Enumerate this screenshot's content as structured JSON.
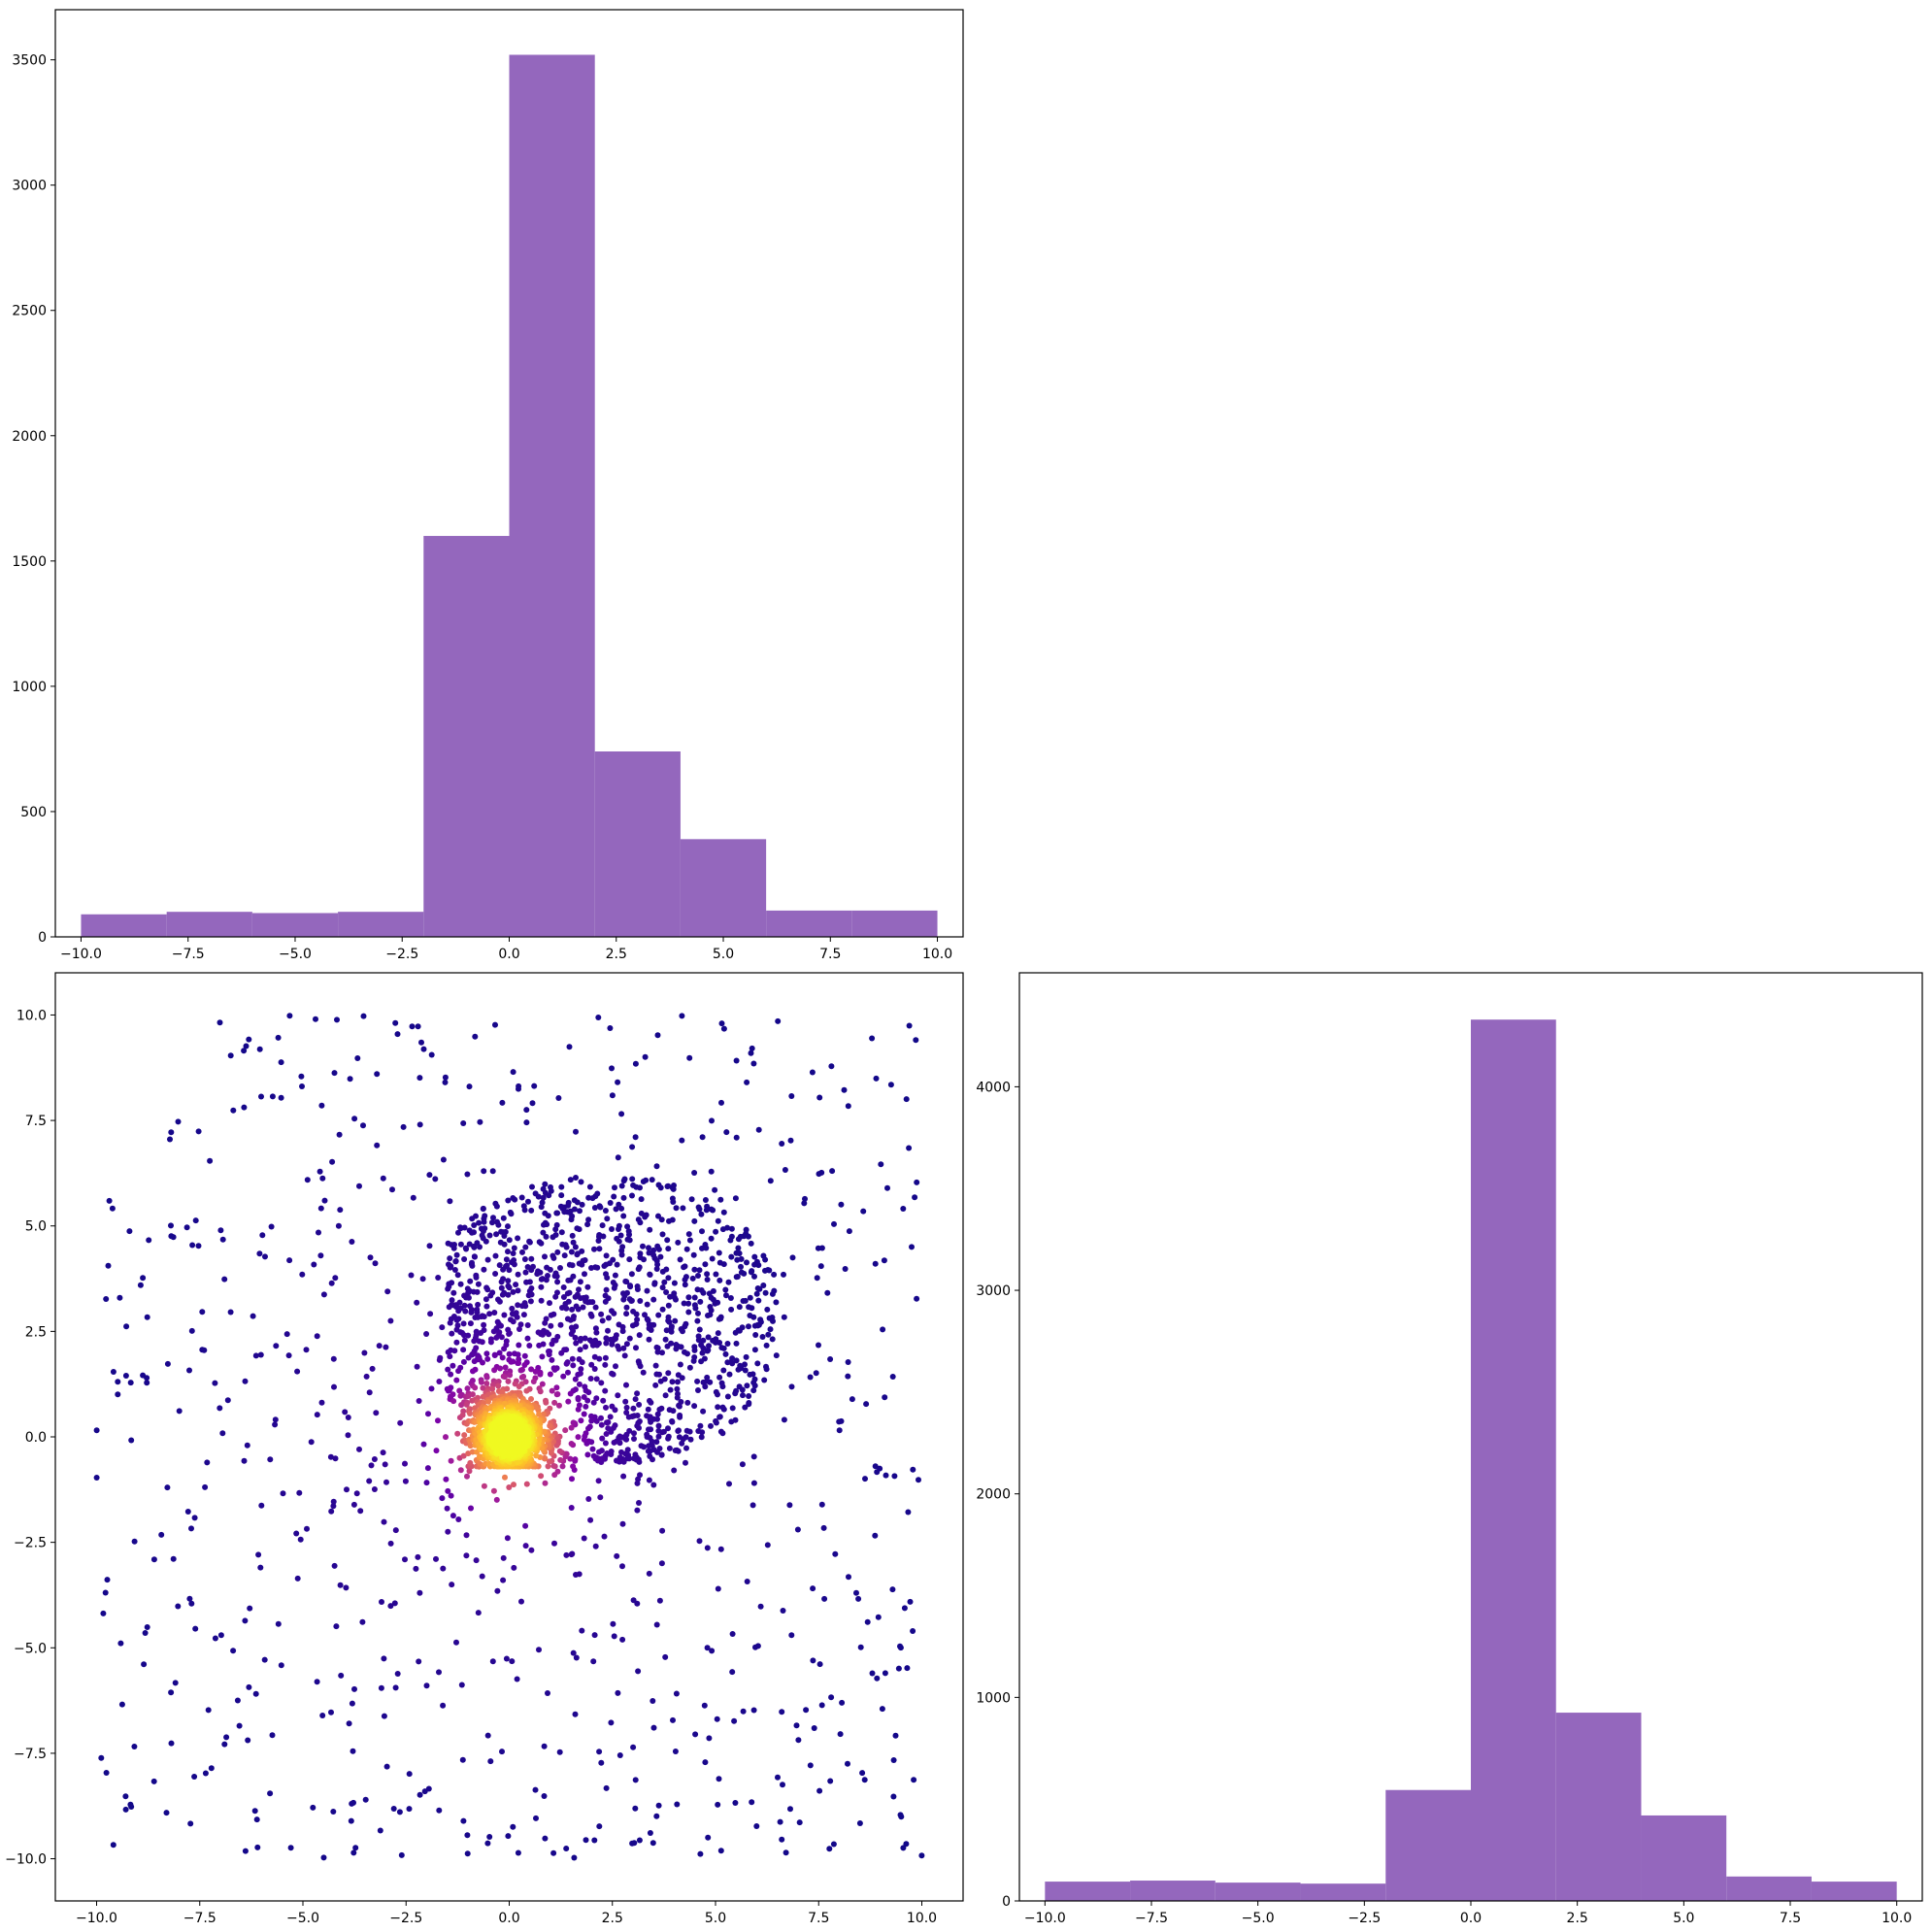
{
  "chart_data": [
    {
      "id": "hist-top-left",
      "type": "bar",
      "subtype": "histogram",
      "bin_edges": [
        -10,
        -8,
        -6,
        -4,
        -2,
        0,
        2,
        4,
        6,
        8,
        10
      ],
      "values": [
        90,
        100,
        95,
        100,
        1600,
        3520,
        740,
        390,
        105,
        105
      ],
      "xlim": [
        -10.6,
        10.6
      ],
      "ylim": [
        0,
        3700
      ],
      "xticks": [
        -10,
        -7.5,
        -5,
        -2.5,
        0,
        2.5,
        5,
        7.5,
        10
      ],
      "xtick_labels": [
        "−10.0",
        "−7.5",
        "−5.0",
        "−2.5",
        "0.0",
        "2.5",
        "5.0",
        "7.5",
        "10.0"
      ],
      "yticks": [
        0,
        500,
        1000,
        1500,
        2000,
        2500,
        3000,
        3500
      ],
      "ytick_labels": [
        "0",
        "500",
        "1000",
        "1500",
        "2000",
        "2500",
        "3000",
        "3500"
      ],
      "bar_color": "#9467bd",
      "grid": false
    },
    {
      "id": "scatter-bottom-left",
      "type": "scatter",
      "description_colormap": "plasma",
      "xlim": [
        -11,
        11
      ],
      "ylim": [
        -11,
        11
      ],
      "xticks": [
        -10,
        -7.5,
        -5,
        -2.5,
        0,
        2.5,
        5,
        7.5,
        10
      ],
      "xtick_labels": [
        "−10.0",
        "−7.5",
        "−5.0",
        "−2.5",
        "0.0",
        "2.5",
        "5.0",
        "7.5",
        "10.0"
      ],
      "yticks": [
        -10,
        -7.5,
        -5,
        -2.5,
        0,
        2.5,
        5,
        7.5,
        10
      ],
      "ytick_labels": [
        "−10.0",
        "−7.5",
        "−5.0",
        "−2.5",
        "0.0",
        "2.5",
        "5.0",
        "7.5",
        "10.0"
      ],
      "uniform_background_points": 720,
      "uniform_range": [
        -10,
        10
      ],
      "cluster_points": 2400,
      "cluster_center": [
        0,
        0
      ],
      "cluster_x_range": [
        -1.5,
        6.5
      ],
      "cluster_y_range": [
        -0.6,
        6.2
      ],
      "ring_points": 90,
      "grid": false
    },
    {
      "id": "hist-bottom-right",
      "type": "bar",
      "subtype": "histogram",
      "bin_edges": [
        -10,
        -8,
        -6,
        -4,
        -2,
        0,
        2,
        4,
        6,
        8,
        10
      ],
      "values": [
        95,
        100,
        90,
        85,
        545,
        4330,
        925,
        420,
        120,
        95
      ],
      "xlim": [
        -10.6,
        10.6
      ],
      "ylim": [
        0,
        4560
      ],
      "xticks": [
        -10,
        -7.5,
        -5,
        -2.5,
        0,
        2.5,
        5,
        7.5,
        10
      ],
      "xtick_labels": [
        "−10.0",
        "−7.5",
        "−5.0",
        "−2.5",
        "0.0",
        "2.5",
        "5.0",
        "7.5",
        "10.0"
      ],
      "yticks": [
        0,
        1000,
        2000,
        3000,
        4000
      ],
      "ytick_labels": [
        "0",
        "1000",
        "2000",
        "3000",
        "4000"
      ],
      "bar_color": "#9467bd",
      "grid": false
    }
  ]
}
